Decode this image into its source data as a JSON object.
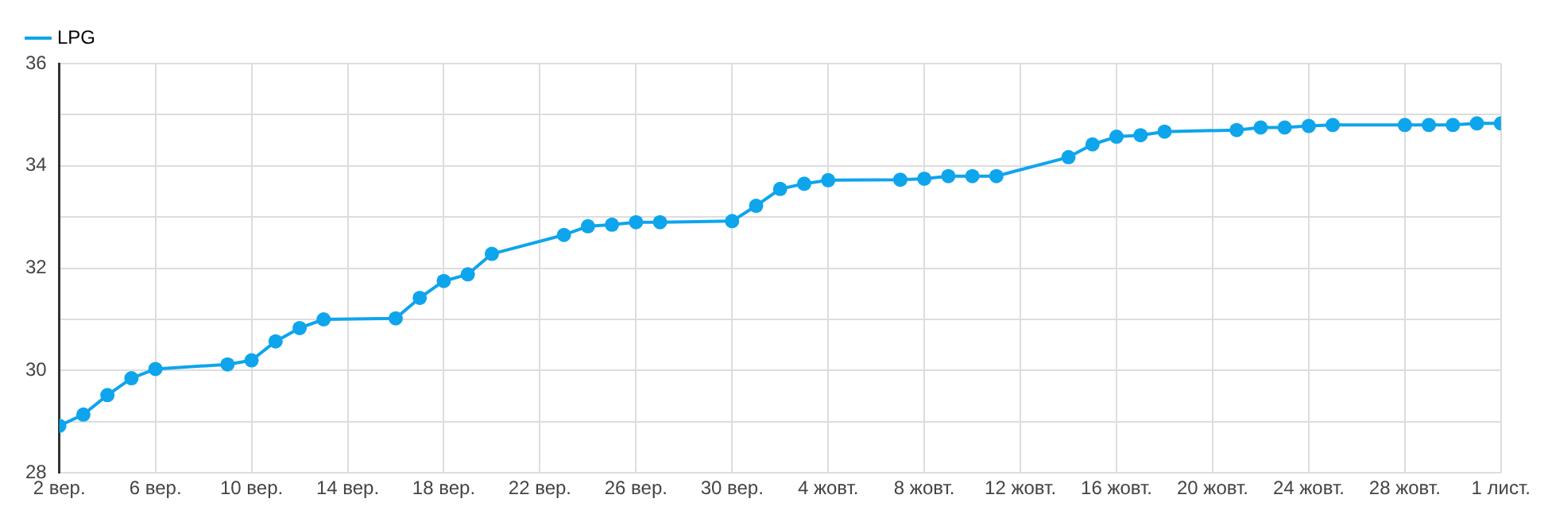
{
  "chart_data": {
    "type": "line",
    "legend": "top left",
    "grid": true,
    "marker": "circle",
    "line_style": "solid",
    "xlim": [
      "--09-02",
      "--11-01"
    ],
    "xticks": [
      {
        "value": "--09-02",
        "label": "2 вер."
      },
      {
        "value": "--09-06",
        "label": "6 вер."
      },
      {
        "value": "--09-10",
        "label": "10 вер."
      },
      {
        "value": "--09-14",
        "label": "14 вер."
      },
      {
        "value": "--09-18",
        "label": "18 вер."
      },
      {
        "value": "--09-22",
        "label": "22 вер."
      },
      {
        "value": "--09-26",
        "label": "26 вер."
      },
      {
        "value": "--09-30",
        "label": "30 вер."
      },
      {
        "value": "--10-04",
        "label": "4 жовт."
      },
      {
        "value": "--10-08",
        "label": "8 жовт."
      },
      {
        "value": "--10-12",
        "label": "12 жовт."
      },
      {
        "value": "--10-16",
        "label": "16 жовт."
      },
      {
        "value": "--10-20",
        "label": "20 жовт."
      },
      {
        "value": "--10-24",
        "label": "24 жовт."
      },
      {
        "value": "--10-28",
        "label": "28 жовт."
      },
      {
        "value": "--11-01",
        "label": "1 лист."
      }
    ],
    "ylim": [
      28,
      36
    ],
    "yticks": [
      28,
      {
        "value": 29,
        "label": null
      },
      30,
      {
        "value": 31,
        "label": null
      },
      32,
      {
        "value": 33,
        "label": null
      },
      34,
      {
        "value": 35,
        "label": null
      },
      36
    ],
    "series": [
      {
        "name": "LPG",
        "color": "#0ea5ec",
        "x": [
          "--09-02",
          "--09-03",
          "--09-04",
          "--09-05",
          "--09-06",
          "--09-09",
          "--09-10",
          "--09-11",
          "--09-12",
          "--09-13",
          "--09-16",
          "--09-17",
          "--09-18",
          "--09-19",
          "--09-20",
          "--09-23",
          "--09-24",
          "--09-25",
          "--09-26",
          "--09-27",
          "--09-30",
          "--10-01",
          "--10-02",
          "--10-03",
          "--10-04",
          "--10-07",
          "--10-08",
          "--10-09",
          "--10-10",
          "--10-11",
          "--10-14",
          "--10-15",
          "--10-16",
          "--10-17",
          "--10-18",
          "--10-21",
          "--10-22",
          "--10-23",
          "--10-24",
          "--10-25",
          "--10-28",
          "--10-29",
          "--10-30",
          "--10-31",
          "--11-01"
        ],
        "values": [
          28.92,
          29.14,
          29.52,
          29.85,
          30.03,
          30.12,
          30.2,
          30.57,
          30.83,
          31.0,
          31.02,
          31.42,
          31.75,
          31.88,
          32.28,
          32.65,
          32.82,
          32.85,
          32.9,
          32.9,
          32.92,
          33.22,
          33.55,
          33.65,
          33.72,
          33.73,
          33.75,
          33.8,
          33.8,
          33.8,
          34.17,
          34.42,
          34.57,
          34.6,
          34.67,
          34.7,
          34.75,
          34.75,
          34.78,
          34.8,
          34.8,
          34.8,
          34.8,
          34.83,
          34.83
        ]
      }
    ]
  }
}
